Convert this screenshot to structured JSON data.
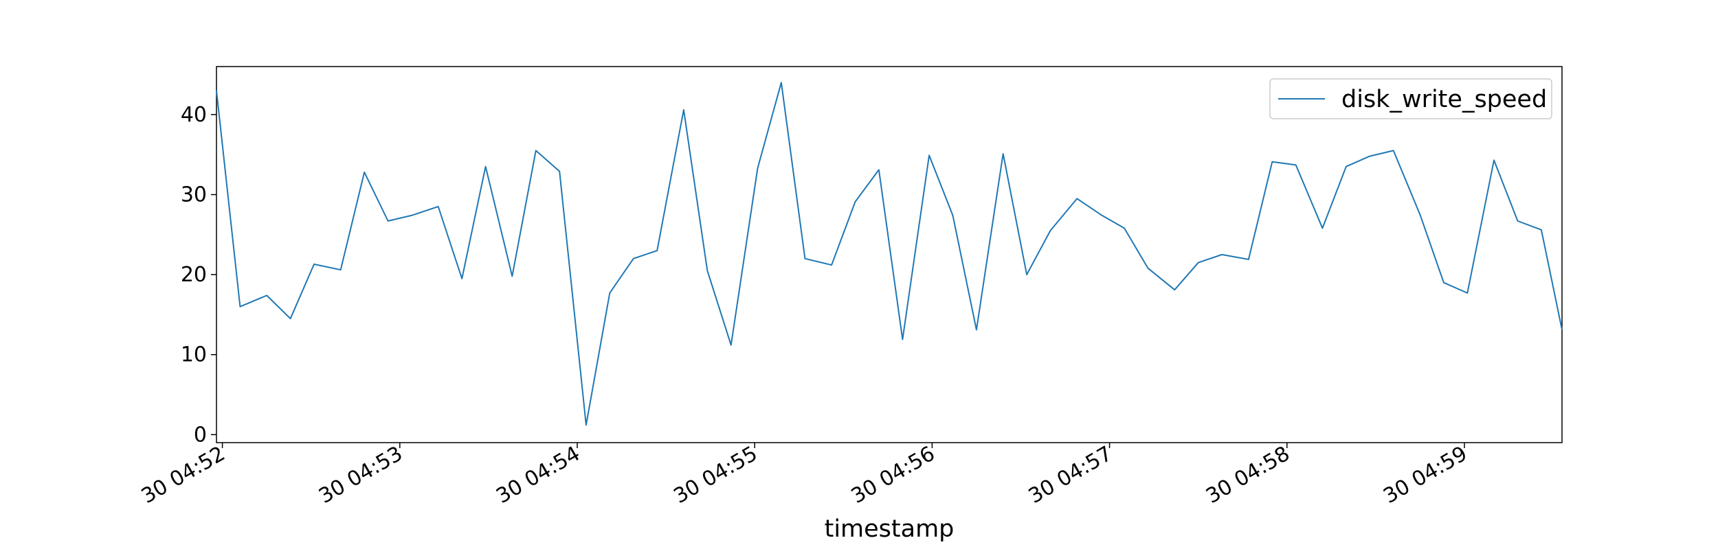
{
  "chart_data": {
    "type": "line",
    "xlabel": "timestamp",
    "ylabel": "",
    "ylim": [
      -1,
      46
    ],
    "y_ticks": [
      0,
      10,
      20,
      30,
      40
    ],
    "x_ticks": [
      "30 04:52",
      "30 04:53",
      "30 04:54",
      "30 04:55",
      "30 04:56",
      "30 04:57",
      "30 04:58",
      "30 04:59"
    ],
    "x_range": [
      "04:51:58",
      "04:59:33"
    ],
    "grid": false,
    "legend_position": "top-right",
    "series": [
      {
        "name": "disk_write_speed",
        "color": "#1f77b4",
        "x": [
          "04:51:58",
          "04:52:06",
          "04:52:15",
          "04:52:23",
          "04:52:31",
          "04:52:40",
          "04:52:48",
          "04:52:56",
          "04:53:04",
          "04:53:13",
          "04:53:21",
          "04:53:29",
          "04:53:38",
          "04:53:46",
          "04:53:54",
          "04:54:03",
          "04:54:11",
          "04:54:19",
          "04:54:27",
          "04:54:36",
          "04:54:44",
          "04:54:52",
          "04:55:01",
          "04:55:09",
          "04:55:17",
          "04:55:26",
          "04:55:34",
          "04:55:42",
          "04:55:50",
          "04:55:59",
          "04:56:07",
          "04:56:15",
          "04:56:24",
          "04:56:32",
          "04:56:40",
          "04:56:49",
          "04:56:57",
          "04:57:05",
          "04:57:13",
          "04:57:22",
          "04:57:30",
          "04:57:38",
          "04:57:47",
          "04:57:55",
          "04:58:03",
          "04:58:12",
          "04:58:20",
          "04:58:28",
          "04:58:36",
          "04:58:45",
          "04:58:53",
          "04:59:01",
          "04:59:10",
          "04:59:18",
          "04:59:26",
          "04:59:33"
        ],
        "values": [
          43.0,
          16.0,
          17.4,
          14.5,
          21.3,
          20.6,
          32.8,
          26.7,
          27.4,
          28.5,
          19.5,
          33.5,
          19.8,
          35.5,
          32.9,
          1.2,
          17.7,
          22.0,
          23.0,
          40.6,
          20.5,
          11.2,
          33.3,
          44.0,
          22.0,
          21.2,
          29.1,
          33.1,
          11.9,
          34.9,
          27.4,
          13.1,
          35.1,
          20.0,
          25.5,
          29.5,
          27.5,
          25.8,
          20.8,
          18.1,
          21.5,
          22.5,
          21.9,
          34.1,
          33.7,
          25.8,
          33.5,
          34.8,
          35.5,
          27.5,
          19.0,
          17.7,
          34.3,
          26.7,
          25.6,
          13.1
        ]
      }
    ]
  }
}
